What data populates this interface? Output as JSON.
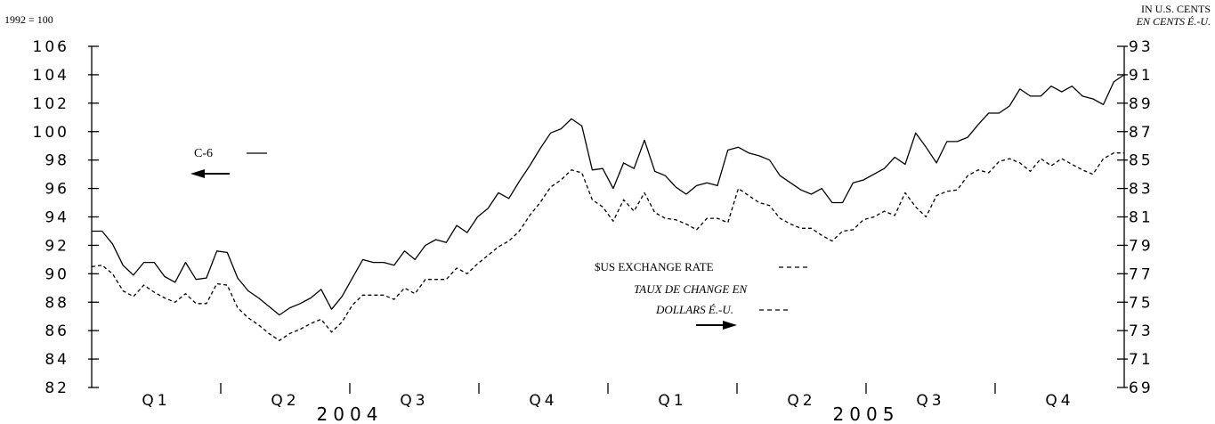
{
  "chart_data": {
    "type": "line",
    "left_axis_label": "1992 = 100",
    "right_axis_label_en": "IN U.S. CENTS",
    "right_axis_label_fr": "EN CENTS É.-U.",
    "left_ticks": [
      "106",
      "104",
      "102",
      "100",
      "98",
      "96",
      "94",
      "92",
      "90",
      "88",
      "86",
      "84",
      "82"
    ],
    "right_ticks": [
      "93",
      "91",
      "89",
      "87",
      "85",
      "83",
      "81",
      "79",
      "77",
      "75",
      "73",
      "71",
      "69"
    ],
    "ylim_left": [
      82,
      106
    ],
    "ylim_right": [
      69,
      93
    ],
    "periods": 104,
    "quarters": [
      "Q1",
      "Q2",
      "Q3",
      "Q4",
      "Q1",
      "Q2",
      "Q3",
      "Q4"
    ],
    "years": [
      "2004",
      "2005"
    ],
    "series": [
      {
        "name": "C-6",
        "axis": "left",
        "style": "solid",
        "values": [
          93.0,
          93.0,
          92.1,
          90.6,
          89.9,
          90.8,
          90.8,
          89.8,
          89.4,
          90.8,
          89.6,
          89.7,
          91.6,
          91.5,
          89.7,
          88.8,
          88.3,
          87.7,
          87.1,
          87.6,
          87.9,
          88.3,
          88.9,
          87.5,
          88.4,
          89.7,
          91.0,
          90.8,
          90.8,
          90.6,
          91.6,
          91.0,
          92.0,
          92.4,
          92.2,
          93.4,
          92.9,
          94.0,
          94.6,
          95.7,
          95.3,
          96.5,
          97.6,
          98.8,
          99.9,
          100.2,
          100.9,
          100.4,
          97.3,
          97.4,
          96.0,
          97.8,
          97.4,
          99.4,
          97.2,
          96.9,
          96.1,
          95.6,
          96.2,
          96.4,
          96.2,
          98.7,
          98.9,
          98.5,
          98.3,
          98.0,
          96.9,
          96.4,
          95.9,
          95.6,
          96.0,
          95.0,
          95.0,
          96.4,
          96.6,
          97.0,
          97.4,
          98.2,
          97.7,
          99.9,
          98.9,
          97.8,
          99.3,
          99.3,
          99.6,
          100.5,
          101.3,
          101.3,
          101.8,
          103.0,
          102.5,
          102.5,
          103.2,
          102.8,
          103.2,
          102.5,
          102.3,
          101.9,
          103.5,
          104.0
        ]
      },
      {
        "name": "$US EXCHANGE RATE",
        "name_fr_line1": "TAUX DE CHANGE EN",
        "name_fr_line2": "DOLLARS É.-U.",
        "axis": "right",
        "style": "dashed",
        "values": [
          77.5,
          77.6,
          77.0,
          75.8,
          75.4,
          76.2,
          75.7,
          75.3,
          75.0,
          75.6,
          74.9,
          74.9,
          76.3,
          76.2,
          74.6,
          73.9,
          73.4,
          72.8,
          72.3,
          72.8,
          73.1,
          73.5,
          73.8,
          72.9,
          73.6,
          74.8,
          75.5,
          75.5,
          75.5,
          75.2,
          76.0,
          75.6,
          76.6,
          76.6,
          76.6,
          77.4,
          77.0,
          77.7,
          78.3,
          78.9,
          79.3,
          80.0,
          81.1,
          82.0,
          83.1,
          83.6,
          84.3,
          84.1,
          82.2,
          81.7,
          80.7,
          82.2,
          81.4,
          82.7,
          81.3,
          80.9,
          80.8,
          80.5,
          80.1,
          80.9,
          80.9,
          80.6,
          83.0,
          82.5,
          82.0,
          81.8,
          80.9,
          80.5,
          80.2,
          80.2,
          79.7,
          79.3,
          80.0,
          80.1,
          80.8,
          81.0,
          81.4,
          81.1,
          82.7,
          81.7,
          81.0,
          82.5,
          82.8,
          82.9,
          83.9,
          84.3,
          84.1,
          84.9,
          85.1,
          84.8,
          84.2,
          85.1,
          84.6,
          85.1,
          84.7,
          84.3,
          84.0,
          85.1,
          85.5,
          85.5
        ]
      }
    ],
    "legend": {
      "c6_label": "C-6",
      "usd_label": "$US EXCHANGE RATE",
      "usd_fr_line1": "TAUX DE CHANGE EN",
      "usd_fr_line2": "DOLLARS É.-U."
    }
  }
}
